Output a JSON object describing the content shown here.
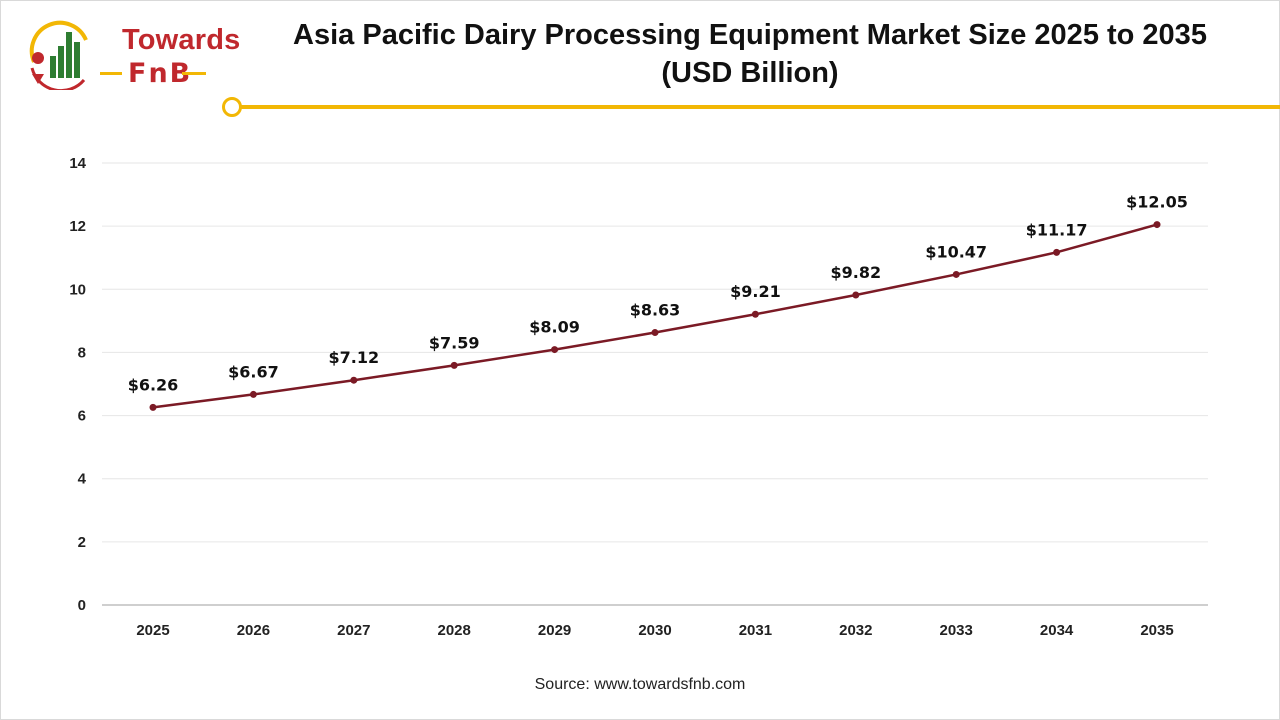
{
  "header": {
    "logo_word_1": "Towards",
    "logo_word_2": "FnB",
    "title_line_1": "Asia Pacific Dairy Processing Equipment Market Size 2025 to 2035",
    "title_line_2": "(USD Billion)"
  },
  "footer": {
    "source": "Source: www.towardsfnb.com"
  },
  "colors": {
    "line": "#7b1a25",
    "accent": "#f2b705",
    "brand": "#c0282d",
    "logo_green": "#2e7d32"
  },
  "chart_data": {
    "type": "line",
    "title": "Asia Pacific Dairy Processing Equipment Market Size 2025 to 2035 (USD Billion)",
    "xlabel": "",
    "ylabel": "",
    "x": [
      "2025",
      "2026",
      "2027",
      "2028",
      "2029",
      "2030",
      "2031",
      "2032",
      "2033",
      "2034",
      "2035"
    ],
    "series": [
      {
        "values": [
          6.26,
          6.67,
          7.12,
          7.59,
          8.09,
          8.63,
          9.21,
          9.82,
          10.47,
          11.17,
          12.05
        ],
        "labels": [
          "$6.26",
          "$6.67",
          "$7.12",
          "$7.59",
          "$8.09",
          "$8.63",
          "$9.21",
          "$9.82",
          "$10.47",
          "$11.17",
          "$12.05"
        ]
      }
    ],
    "ylim": [
      0,
      14
    ],
    "yticks": [
      0,
      2,
      4,
      6,
      8,
      10,
      12,
      14
    ],
    "grid": true,
    "legend": "none"
  }
}
